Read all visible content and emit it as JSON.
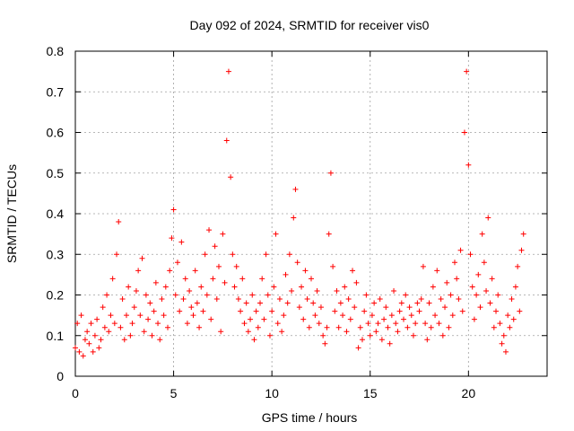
{
  "chart_data": {
    "type": "scatter",
    "title": "Day 092 of 2024, SRMTID for receiver vis0",
    "xlabel": "GPS time / hours",
    "ylabel": "SRMTID / TECUs",
    "xlim": [
      0,
      24
    ],
    "ylim": [
      0,
      0.8
    ],
    "x_ticks": [
      0,
      5,
      10,
      15,
      20
    ],
    "x_tick_labels": [
      "0",
      "5",
      "10",
      "15",
      "20"
    ],
    "y_ticks": [
      0,
      0.1,
      0.2,
      0.3,
      0.4,
      0.5,
      0.6,
      0.7,
      0.8
    ],
    "y_tick_labels": [
      "0",
      "0.1",
      "0.2",
      "0.3",
      "0.4",
      "0.5",
      "0.6",
      "0.7",
      "0.8"
    ],
    "grid": true,
    "marker": "+",
    "color": "#ff0000",
    "series": [
      {
        "name": "SRMTID",
        "x": [
          0.0,
          0.1,
          0.2,
          0.3,
          0.4,
          0.5,
          0.6,
          0.7,
          0.8,
          0.9,
          1.0,
          1.1,
          1.2,
          1.3,
          1.4,
          1.5,
          1.6,
          1.7,
          1.8,
          1.9,
          2.0,
          2.1,
          2.2,
          2.3,
          2.4,
          2.5,
          2.6,
          2.7,
          2.8,
          2.9,
          3.0,
          3.1,
          3.2,
          3.3,
          3.4,
          3.5,
          3.6,
          3.7,
          3.8,
          3.9,
          4.0,
          4.1,
          4.2,
          4.3,
          4.4,
          4.5,
          4.6,
          4.7,
          4.8,
          4.9,
          5.0,
          5.1,
          5.2,
          5.3,
          5.4,
          5.5,
          5.6,
          5.7,
          5.8,
          5.9,
          6.0,
          6.1,
          6.2,
          6.3,
          6.4,
          6.5,
          6.6,
          6.7,
          6.8,
          6.9,
          7.0,
          7.1,
          7.2,
          7.3,
          7.4,
          7.5,
          7.6,
          7.7,
          7.8,
          7.9,
          8.0,
          8.1,
          8.2,
          8.3,
          8.4,
          8.5,
          8.6,
          8.7,
          8.8,
          8.9,
          9.0,
          9.1,
          9.2,
          9.3,
          9.4,
          9.5,
          9.6,
          9.7,
          9.8,
          9.9,
          10.0,
          10.1,
          10.2,
          10.3,
          10.4,
          10.5,
          10.6,
          10.7,
          10.8,
          10.9,
          11.0,
          11.1,
          11.2,
          11.3,
          11.4,
          11.5,
          11.6,
          11.7,
          11.8,
          11.9,
          12.0,
          12.1,
          12.2,
          12.3,
          12.4,
          12.5,
          12.6,
          12.7,
          12.8,
          12.9,
          13.0,
          13.1,
          13.2,
          13.3,
          13.4,
          13.5,
          13.6,
          13.7,
          13.8,
          13.9,
          14.0,
          14.1,
          14.2,
          14.3,
          14.4,
          14.5,
          14.6,
          14.7,
          14.8,
          14.9,
          15.0,
          15.1,
          15.2,
          15.3,
          15.4,
          15.5,
          15.6,
          15.7,
          15.8,
          15.9,
          16.0,
          16.1,
          16.2,
          16.3,
          16.4,
          16.5,
          16.6,
          16.7,
          16.8,
          16.9,
          17.0,
          17.1,
          17.2,
          17.3,
          17.4,
          17.5,
          17.6,
          17.7,
          17.8,
          17.9,
          18.0,
          18.1,
          18.2,
          18.3,
          18.4,
          18.5,
          18.6,
          18.7,
          18.8,
          18.9,
          19.0,
          19.1,
          19.2,
          19.3,
          19.4,
          19.5,
          19.6,
          19.7,
          19.8,
          19.9,
          20.0,
          20.1,
          20.2,
          20.3,
          20.4,
          20.5,
          20.6,
          20.7,
          20.8,
          20.9,
          21.0,
          21.1,
          21.2,
          21.3,
          21.4,
          21.5,
          21.6,
          21.7,
          21.8,
          21.9,
          22.0,
          22.1,
          22.2,
          22.3,
          22.4,
          22.5,
          22.6,
          22.7,
          22.8
        ],
        "y": [
          0.07,
          0.13,
          0.06,
          0.15,
          0.05,
          0.09,
          0.11,
          0.08,
          0.13,
          0.06,
          0.1,
          0.14,
          0.07,
          0.09,
          0.17,
          0.12,
          0.2,
          0.11,
          0.15,
          0.24,
          0.13,
          0.3,
          0.38,
          0.12,
          0.19,
          0.09,
          0.15,
          0.22,
          0.1,
          0.13,
          0.17,
          0.21,
          0.26,
          0.15,
          0.29,
          0.11,
          0.2,
          0.14,
          0.18,
          0.1,
          0.16,
          0.23,
          0.13,
          0.09,
          0.19,
          0.15,
          0.22,
          0.12,
          0.26,
          0.34,
          0.41,
          0.2,
          0.28,
          0.16,
          0.33,
          0.19,
          0.24,
          0.13,
          0.21,
          0.17,
          0.15,
          0.26,
          0.18,
          0.12,
          0.22,
          0.16,
          0.3,
          0.2,
          0.36,
          0.14,
          0.24,
          0.32,
          0.19,
          0.27,
          0.11,
          0.35,
          0.23,
          0.58,
          0.75,
          0.49,
          0.3,
          0.22,
          0.27,
          0.19,
          0.16,
          0.24,
          0.13,
          0.18,
          0.11,
          0.14,
          0.2,
          0.09,
          0.16,
          0.12,
          0.18,
          0.24,
          0.14,
          0.3,
          0.2,
          0.1,
          0.16,
          0.22,
          0.35,
          0.13,
          0.19,
          0.11,
          0.15,
          0.25,
          0.18,
          0.3,
          0.21,
          0.39,
          0.46,
          0.28,
          0.17,
          0.22,
          0.14,
          0.26,
          0.19,
          0.12,
          0.24,
          0.18,
          0.15,
          0.21,
          0.13,
          0.17,
          0.1,
          0.08,
          0.12,
          0.35,
          0.5,
          0.27,
          0.16,
          0.21,
          0.12,
          0.18,
          0.15,
          0.22,
          0.11,
          0.19,
          0.14,
          0.26,
          0.17,
          0.23,
          0.07,
          0.12,
          0.09,
          0.16,
          0.2,
          0.13,
          0.1,
          0.15,
          0.18,
          0.11,
          0.13,
          0.19,
          0.09,
          0.14,
          0.17,
          0.12,
          0.08,
          0.15,
          0.21,
          0.13,
          0.11,
          0.16,
          0.18,
          0.14,
          0.2,
          0.12,
          0.17,
          0.15,
          0.1,
          0.13,
          0.18,
          0.16,
          0.19,
          0.27,
          0.13,
          0.09,
          0.18,
          0.12,
          0.22,
          0.15,
          0.26,
          0.13,
          0.19,
          0.1,
          0.17,
          0.23,
          0.12,
          0.2,
          0.15,
          0.28,
          0.24,
          0.19,
          0.31,
          0.16,
          0.6,
          0.75,
          0.52,
          0.3,
          0.22,
          0.14,
          0.2,
          0.25,
          0.17,
          0.35,
          0.28,
          0.21,
          0.39,
          0.18,
          0.24,
          0.12,
          0.16,
          0.2,
          0.13,
          0.08,
          0.1,
          0.06,
          0.15,
          0.12,
          0.19,
          0.14,
          0.22,
          0.27,
          0.16,
          0.31,
          0.35
        ]
      }
    ]
  }
}
